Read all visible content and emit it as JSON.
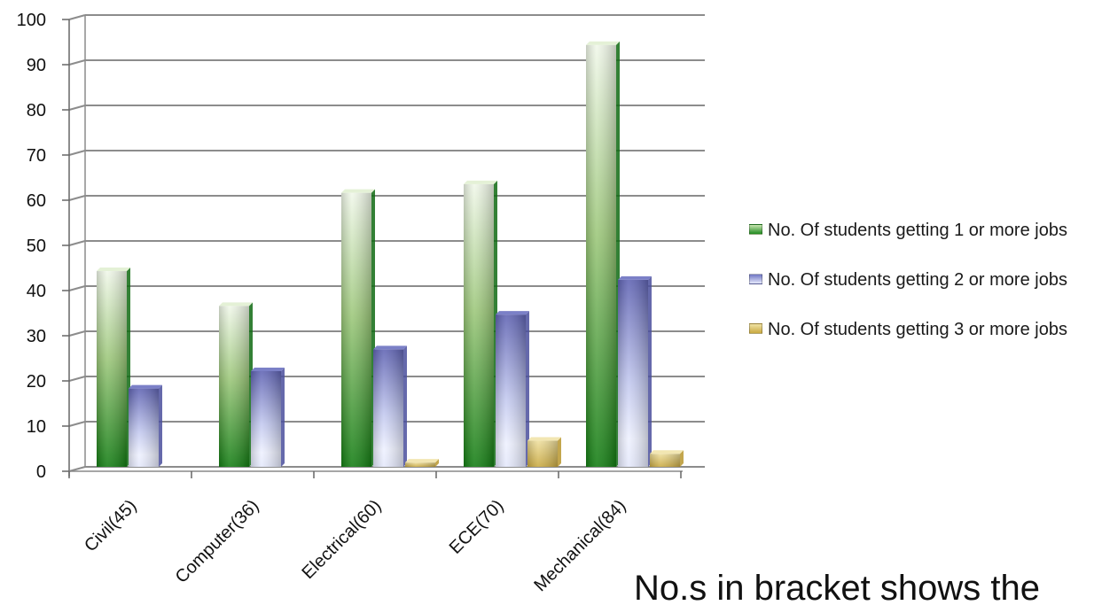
{
  "chart_data": {
    "type": "bar",
    "categories": [
      "Civil(45)",
      "Computer(36)",
      "Electrical(60)",
      "ECE(70)",
      "Mechanical(84)"
    ],
    "series": [
      {
        "name": "No. Of students getting 1 or more jobs",
        "values": [
          45,
          37,
          63,
          65,
          97
        ],
        "color": "#4e9a3a"
      },
      {
        "name": "No. Of students getting 2 or more jobs",
        "values": [
          18,
          22,
          27,
          35,
          43
        ],
        "color": "#6f76c4"
      },
      {
        "name": "No. Of students getting 3 or more jobs",
        "values": [
          0,
          0,
          1,
          6,
          3
        ],
        "color": "#d8c068"
      }
    ],
    "ylim": [
      0,
      100
    ],
    "yticks": [
      0,
      10,
      20,
      30,
      40,
      50,
      60,
      70,
      80,
      90,
      100
    ],
    "grid": true,
    "legend_position": "right"
  },
  "note": "No.s in bracket  shows the"
}
